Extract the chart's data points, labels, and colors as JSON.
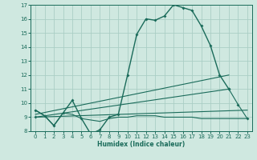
{
  "xlabel": "Humidex (Indice chaleur)",
  "xlim": [
    -0.5,
    23.5
  ],
  "ylim": [
    8,
    17
  ],
  "xticks": [
    0,
    1,
    2,
    3,
    4,
    5,
    6,
    7,
    8,
    9,
    10,
    11,
    12,
    13,
    14,
    15,
    16,
    17,
    18,
    19,
    20,
    21,
    22,
    23
  ],
  "yticks": [
    8,
    9,
    10,
    11,
    12,
    13,
    14,
    15,
    16,
    17
  ],
  "bg_color": "#cfe8e0",
  "grid_color": "#aacec5",
  "line_color": "#1a6b5a",
  "curve_main": {
    "x": [
      0,
      1,
      2,
      3,
      4,
      5,
      6,
      7,
      8,
      9,
      10,
      11,
      12,
      13,
      14,
      15,
      16,
      17,
      18,
      19,
      20,
      21
    ],
    "y": [
      9.5,
      9.1,
      8.4,
      9.3,
      10.2,
      8.9,
      7.8,
      8.1,
      9.0,
      9.2,
      12.0,
      14.9,
      16.0,
      15.9,
      16.2,
      17.0,
      16.8,
      16.6,
      15.5,
      14.1,
      12.0,
      11.0
    ]
  },
  "curve_flat": {
    "x": [
      0,
      1,
      2,
      3,
      4,
      5,
      6,
      7,
      8,
      9,
      10,
      11,
      12,
      13,
      14,
      15,
      16,
      17,
      18,
      19,
      20,
      21,
      22,
      23
    ],
    "y": [
      9.5,
      9.1,
      8.4,
      9.3,
      9.2,
      8.9,
      8.8,
      8.7,
      8.9,
      9.0,
      9.0,
      9.1,
      9.1,
      9.1,
      9.0,
      9.0,
      9.0,
      9.0,
      8.9,
      8.9,
      8.9,
      8.9,
      8.9,
      8.9
    ]
  },
  "curve_diag1": {
    "x": [
      0,
      21,
      22,
      23
    ],
    "y": [
      9.0,
      11.0,
      9.9,
      8.9
    ]
  },
  "curve_diag2": {
    "x": [
      0,
      23
    ],
    "y": [
      9.0,
      9.5
    ]
  },
  "curve_diag3": {
    "x": [
      0,
      21
    ],
    "y": [
      9.2,
      12.0
    ]
  }
}
